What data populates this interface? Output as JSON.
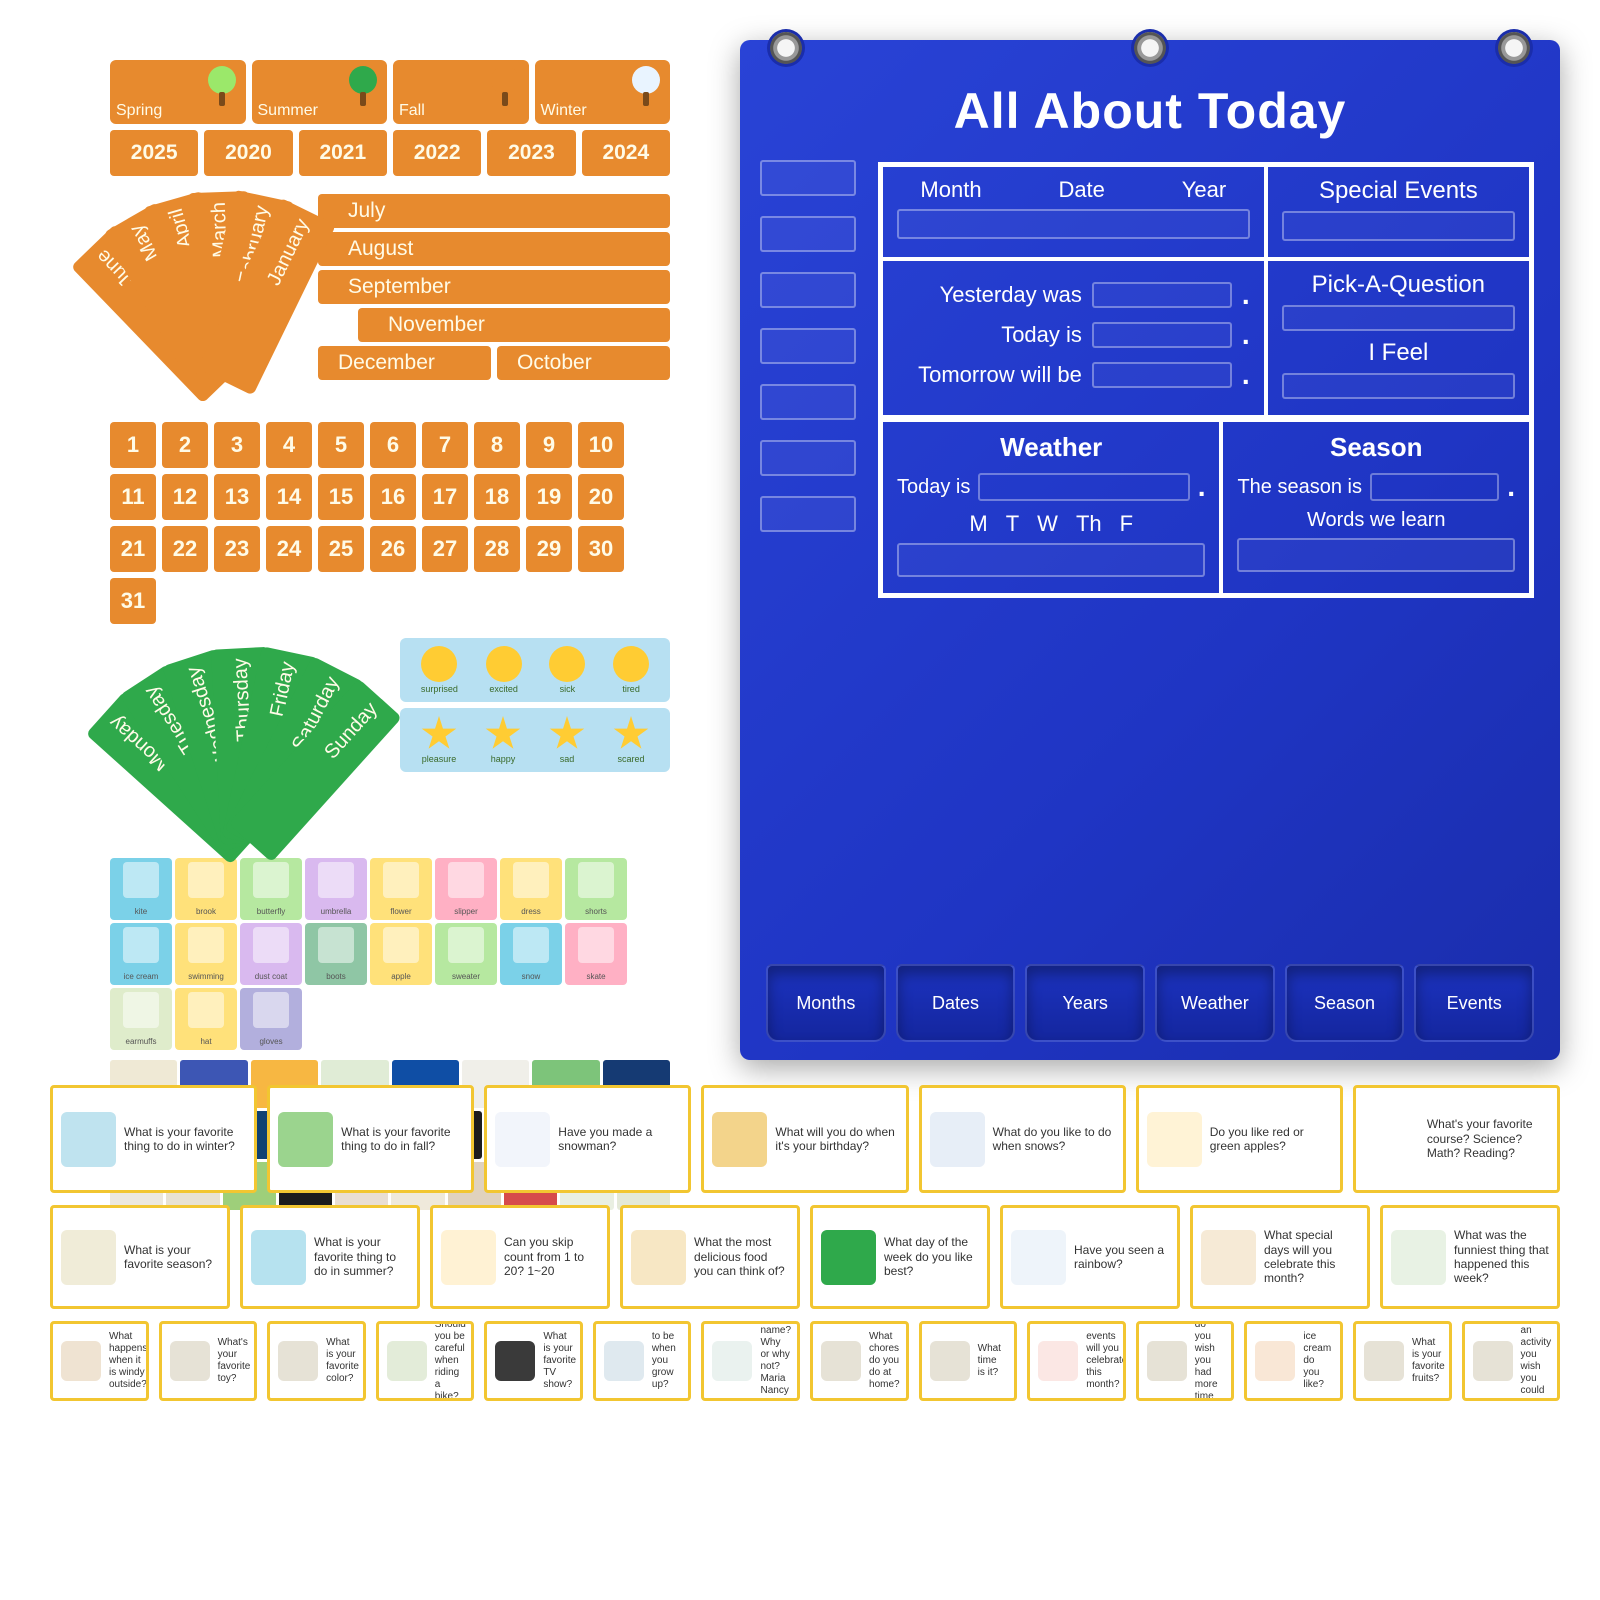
{
  "colors": {
    "orange": "#e78a2e",
    "orange_dark": "#d57820",
    "year_text": "#fffbe7",
    "green": "#2fa94b",
    "blue_chart": "#2237c8",
    "qcard_border": "#f2c631",
    "emoji_bg": "#b7e0f2"
  },
  "seasons": [
    {
      "label": "Spring",
      "crown": "#9be86a"
    },
    {
      "label": "Summer",
      "crown": "#2fa94b"
    },
    {
      "label": "Fall",
      "crown": "#e78a2e"
    },
    {
      "label": "Winter",
      "crown": "#e9f4ff"
    }
  ],
  "years": [
    "2025",
    "2020",
    "2021",
    "2022",
    "2023",
    "2024"
  ],
  "fan_front": [
    "June",
    "May",
    "April",
    "March",
    "February",
    "January"
  ],
  "month_list_top": [
    "July",
    "August",
    "September"
  ],
  "month_list_mid": "November",
  "month_list_bottom": [
    "December",
    "October"
  ],
  "numbers": [
    "1",
    "2",
    "3",
    "4",
    "5",
    "6",
    "7",
    "8",
    "9",
    "10",
    "11",
    "12",
    "13",
    "14",
    "15",
    "16",
    "17",
    "18",
    "19",
    "20",
    "21",
    "22",
    "23",
    "24",
    "25",
    "26",
    "27",
    "28",
    "29",
    "30",
    "31"
  ],
  "days_fan": [
    "Monday",
    "Tuesday",
    "Wednesday",
    "Thursday",
    "Friday",
    "Saturday",
    "Sunday"
  ],
  "emoji_top": [
    "surprised",
    "excited",
    "sick",
    "tired"
  ],
  "emoji_bottom": [
    "pleasure",
    "happy",
    "sad",
    "scared"
  ],
  "pic_row1": [
    {
      "l": "kite",
      "c": "#7bd1e8"
    },
    {
      "l": "brook",
      "c": "#ffe17a"
    },
    {
      "l": "butterfly",
      "c": "#b6e8a0"
    },
    {
      "l": "umbrella",
      "c": "#d9b9ef"
    }
  ],
  "pic_row2": [
    {
      "l": "flower",
      "c": "#ffe17a"
    },
    {
      "l": "slipper",
      "c": "#ffb0c4"
    },
    {
      "l": "dress",
      "c": "#ffe17a"
    },
    {
      "l": "shorts",
      "c": "#b6e8a0"
    },
    {
      "l": "ice cream",
      "c": "#7bd1e8"
    },
    {
      "l": "swimming",
      "c": "#ffe17a"
    },
    {
      "l": "dust coat",
      "c": "#d9b9ef"
    },
    {
      "l": "boots",
      "c": "#8fc6a5"
    }
  ],
  "pic_row3": [
    {
      "l": "apple",
      "c": "#ffe17a"
    },
    {
      "l": "sweater",
      "c": "#b6e8a0"
    },
    {
      "l": "snow",
      "c": "#7bd1e8"
    },
    {
      "l": "skate",
      "c": "#ffb0c4"
    },
    {
      "l": "earmuffs",
      "c": "#dfeccb"
    },
    {
      "l": "hat",
      "c": "#ffe17a"
    },
    {
      "l": "gloves",
      "c": "#b2afdd"
    }
  ],
  "holiday_colors_row": [
    [
      "#efe9d5",
      "#3d56b4",
      "#f7b742",
      "#e0ecd6",
      "#0f4ea5",
      "#f0efe9",
      "#7dc47a",
      "#153a73"
    ],
    [
      "#eae5d8",
      "#f4eee1",
      "#0f4273",
      "#f0eee9",
      "#e44a4a",
      "#1c1c1c",
      "#1c1c1c",
      "#efe9e2",
      "#efe0c8"
    ],
    [
      "#ece8df",
      "#e8e2d3",
      "#9ecf7a",
      "#1c1c1c",
      "#e9ded3",
      "#efe9db",
      "#e0d2be",
      "#d64b4b",
      "#e9efe2",
      "#e4e9d8"
    ]
  ],
  "chart": {
    "title": "All About Today",
    "top_headers": [
      "Month",
      "Date",
      "Year"
    ],
    "special": "Special Events",
    "yesterday": "Yesterday was",
    "today": "Today is",
    "tomorrow": "Tomorrow will be",
    "pick": "Pick-A-Question",
    "feel": "I Feel",
    "weather": "Weather",
    "season": "Season",
    "today_is": "Today is",
    "season_is": "The season is",
    "days": [
      "M",
      "T",
      "W",
      "Th",
      "F"
    ],
    "words": "Words we learn",
    "pockets": [
      "Months",
      "Dates",
      "Years",
      "Weather",
      "Season",
      "Events"
    ]
  },
  "qcards_r1": [
    {
      "c": "#bfe3ef",
      "t": "What is your favorite thing to do in winter?"
    },
    {
      "c": "#9bd48e",
      "t": "What is your favorite thing to do in fall?"
    },
    {
      "c": "#f2f5fb",
      "t": "Have you made a snowman?"
    },
    {
      "c": "#f3d48b",
      "t": "What will you do when it's your birthday?"
    },
    {
      "c": "#e7eef7",
      "t": "What do you like to do when snows?"
    },
    {
      "c": "#fff3d6",
      "t": "Do you like red or green apples?"
    },
    {
      "c": "#ffffff",
      "t": "What's your favorite course?  Science?  Math?  Reading?"
    }
  ],
  "qcards_r2": [
    {
      "c": "#f0ecd8",
      "t": "What is your favorite season?"
    },
    {
      "c": "#b6e2ef",
      "t": "What is your favorite thing to do in summer?"
    },
    {
      "c": "#fff2d4",
      "t": "Can you skip count from 1 to 20?  1~20"
    },
    {
      "c": "#f7e7c4",
      "t": "What the most delicious food you can think of?"
    },
    {
      "c": "#2fa94b",
      "t": "What day of the week do you like best?"
    },
    {
      "c": "#eef4fa",
      "t": "Have you seen a rainbow?"
    },
    {
      "c": "#f6ead6",
      "t": "What special days will you celebrate this month?"
    },
    {
      "c": "#e8f2e4",
      "t": "What was the funniest thing that happened this week?"
    }
  ],
  "qcards_r3": [
    {
      "c": "#efe3d2",
      "t": "What happens when it is windy outside?"
    },
    {
      "c": "#e6e2d6",
      "t": "What's your favorite toy?"
    },
    {
      "c": "#e6e2d6",
      "t": "What is your favorite color?"
    },
    {
      "c": "#e3ecd9",
      "t": "Should you be careful when riding a bike?"
    },
    {
      "c": "#3a3a3a",
      "t": "What is your favorite TV show?"
    },
    {
      "c": "#dfe9ef",
      "t": "to be when you grow up?"
    },
    {
      "c": "#eaf2ef",
      "t": "name? Why or why not? Maria Nancy"
    },
    {
      "c": "#e6e2d6",
      "t": "What chores do you do at home?"
    },
    {
      "c": "#e6e2d6",
      "t": "What time is it?"
    },
    {
      "c": "#fbe7e4",
      "t": "events will you celebrate this month?"
    },
    {
      "c": "#e6e2d6",
      "t": "What do you wish you had more time with?"
    },
    {
      "c": "#f9e7d6",
      "t": "ice cream do you like?"
    },
    {
      "c": "#e6e2d6",
      "t": "What is your favorite fruits?"
    },
    {
      "c": "#e6e2d6",
      "t": "What's an activity you wish you could try?"
    }
  ]
}
